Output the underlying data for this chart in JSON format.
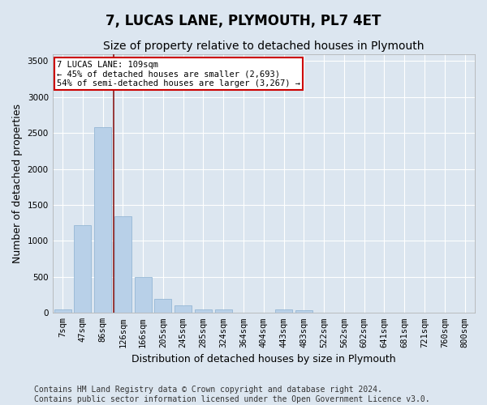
{
  "title": "7, LUCAS LANE, PLYMOUTH, PL7 4ET",
  "subtitle": "Size of property relative to detached houses in Plymouth",
  "xlabel": "Distribution of detached houses by size in Plymouth",
  "ylabel": "Number of detached properties",
  "bar_labels": [
    "7sqm",
    "47sqm",
    "86sqm",
    "126sqm",
    "166sqm",
    "205sqm",
    "245sqm",
    "285sqm",
    "324sqm",
    "364sqm",
    "404sqm",
    "443sqm",
    "483sqm",
    "522sqm",
    "562sqm",
    "602sqm",
    "641sqm",
    "681sqm",
    "721sqm",
    "760sqm",
    "800sqm"
  ],
  "bar_values": [
    50,
    1220,
    2580,
    1340,
    500,
    195,
    110,
    50,
    50,
    5,
    5,
    50,
    35,
    5,
    5,
    5,
    5,
    5,
    5,
    5,
    5
  ],
  "bar_color": "#b8d0e8",
  "bar_edge_color": "#8ab0d0",
  "bar_width": 0.85,
  "ylim": [
    0,
    3600
  ],
  "yticks": [
    0,
    500,
    1000,
    1500,
    2000,
    2500,
    3000,
    3500
  ],
  "vline_x": 2.56,
  "vline_color": "#8b1a1a",
  "annotation_text": "7 LUCAS LANE: 109sqm\n← 45% of detached houses are smaller (2,693)\n54% of semi-detached houses are larger (3,267) →",
  "annotation_box_facecolor": "#ffffff",
  "annotation_box_edgecolor": "#cc0000",
  "footer_line1": "Contains HM Land Registry data © Crown copyright and database right 2024.",
  "footer_line2": "Contains public sector information licensed under the Open Government Licence v3.0.",
  "bg_color": "#dce6f0",
  "plot_bg_color": "#dce6f0",
  "grid_color": "#ffffff",
  "title_fontsize": 12,
  "subtitle_fontsize": 10,
  "ylabel_fontsize": 9,
  "xlabel_fontsize": 9,
  "tick_fontsize": 7.5,
  "annotation_fontsize": 7.5,
  "footer_fontsize": 7
}
